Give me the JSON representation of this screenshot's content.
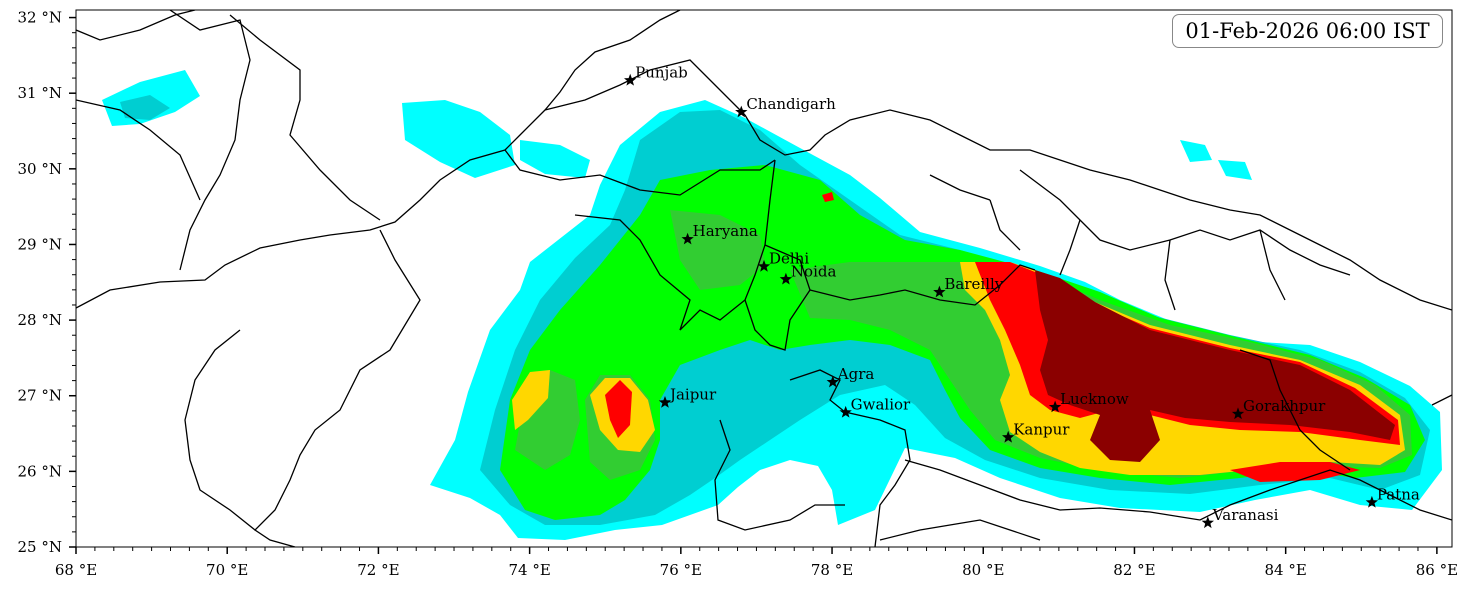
{
  "timestamp": "01-Feb-2026 06:00 IST",
  "lon_ticks": [
    {
      "value": 68,
      "label": "68 °E"
    },
    {
      "value": 70,
      "label": "70 °E"
    },
    {
      "value": 72,
      "label": "72 °E"
    },
    {
      "value": 74,
      "label": "74 °E"
    },
    {
      "value": 76,
      "label": "76 °E"
    },
    {
      "value": 78,
      "label": "78 °E"
    },
    {
      "value": 80,
      "label": "80 °E"
    },
    {
      "value": 82,
      "label": "82 °E"
    },
    {
      "value": 84,
      "label": "84 °E"
    },
    {
      "value": 86,
      "label": "86 °E"
    }
  ],
  "lat_ticks": [
    {
      "value": 32,
      "label": "32 °N"
    },
    {
      "value": 31,
      "label": "31 °N"
    },
    {
      "value": 30,
      "label": "30 °N"
    },
    {
      "value": 29,
      "label": "29 °N"
    },
    {
      "value": 28,
      "label": "28 °N"
    },
    {
      "value": 27,
      "label": "27 °N"
    },
    {
      "value": 26,
      "label": "26 °N"
    },
    {
      "value": 25,
      "label": "25 °N"
    }
  ],
  "extent": {
    "lon_min": 68.0,
    "lon_max": 86.2,
    "lat_min": 25.0,
    "lat_max": 32.1
  },
  "cities": [
    {
      "name": "Punjab",
      "lon": 75.33,
      "lat": 31.17
    },
    {
      "name": "Chandigarh",
      "lon": 76.8,
      "lat": 30.75
    },
    {
      "name": "Haryana",
      "lon": 76.09,
      "lat": 29.07
    },
    {
      "name": "Delhi",
      "lon": 77.1,
      "lat": 28.71
    },
    {
      "name": "Noida",
      "lon": 77.39,
      "lat": 28.54
    },
    {
      "name": "Bareilly",
      "lon": 79.42,
      "lat": 28.37
    },
    {
      "name": "Agra",
      "lon": 78.01,
      "lat": 27.18
    },
    {
      "name": "Jaipur",
      "lon": 75.79,
      "lat": 26.91
    },
    {
      "name": "Gwalior",
      "lon": 78.18,
      "lat": 26.78
    },
    {
      "name": "Lucknow",
      "lon": 80.95,
      "lat": 26.85
    },
    {
      "name": "Gorakhpur",
      "lon": 83.37,
      "lat": 26.76
    },
    {
      "name": "Kanpur",
      "lon": 80.33,
      "lat": 26.45
    },
    {
      "name": "Varanasi",
      "lon": 82.97,
      "lat": 25.32
    },
    {
      "name": "Patna",
      "lon": 85.14,
      "lat": 25.59
    }
  ],
  "shading_colors": {
    "level1": "#00ffff",
    "level2": "#00ced1",
    "level3": "#00ff00",
    "level4": "#32cd32",
    "level5": "#ffd700",
    "level6": "#ff0000",
    "level7": "#8b0000"
  }
}
